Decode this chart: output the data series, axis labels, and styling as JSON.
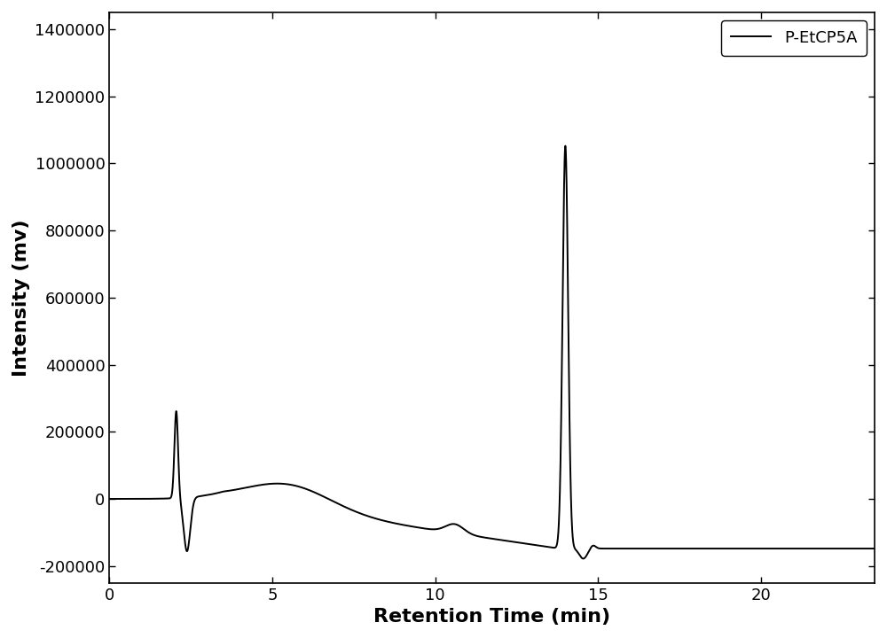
{
  "xlabel": "Retention Time (min)",
  "ylabel": "Intensity (mv)",
  "legend_label": "P-EtCP5A",
  "line_color": "#000000",
  "line_width": 1.4,
  "background_color": "#ffffff",
  "xlim": [
    0,
    23.5
  ],
  "ylim": [
    -250000,
    1450000
  ],
  "xticks": [
    0,
    5,
    10,
    15,
    20
  ],
  "yticks": [
    -200000,
    0,
    200000,
    400000,
    600000,
    800000,
    1000000,
    1200000,
    1400000
  ],
  "figsize": [
    10.0,
    7.2
  ],
  "dpi": 100,
  "xlabel_fontsize": 16,
  "ylabel_fontsize": 16,
  "tick_fontsize": 13,
  "legend_fontsize": 13
}
